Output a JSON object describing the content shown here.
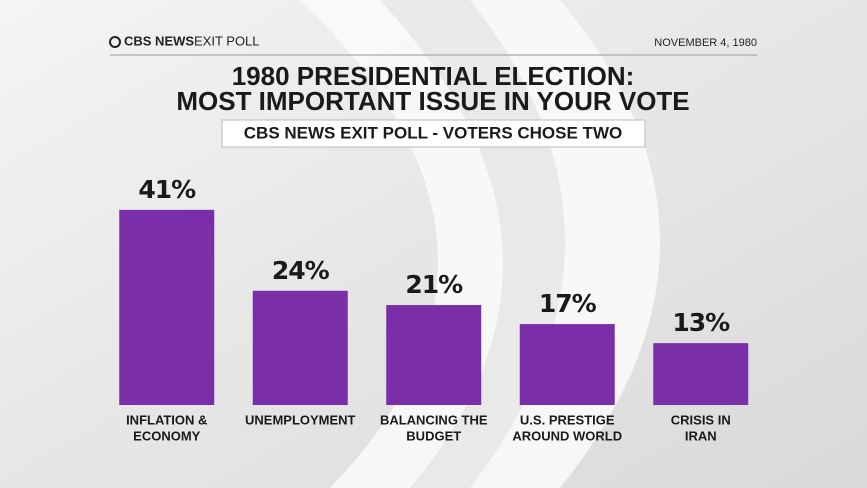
{
  "chart_data": {
    "type": "bar",
    "brand": "CBS NEWS",
    "brand_sub": "EXIT POLL",
    "date": "NOVEMBER 4, 1980",
    "title": [
      "1980 PRESIDENTIAL ELECTION:",
      "MOST IMPORTANT ISSUE IN YOUR VOTE"
    ],
    "subtitle": "CBS NEWS EXIT POLL - VOTERS CHOSE TWO",
    "categories": [
      [
        "INFLATION &",
        "ECONOMY"
      ],
      [
        "UNEMPLOYMENT"
      ],
      [
        "BALANCING THE",
        "BUDGET"
      ],
      [
        "U.S. PRESTIGE",
        "AROUND WORLD"
      ],
      [
        "CRISIS IN",
        "IRAN"
      ]
    ],
    "values": [
      41,
      24,
      21,
      17,
      13
    ],
    "value_labels": [
      "41%",
      "24%",
      "21%",
      "17%",
      "13%"
    ],
    "color": "#7a2ea8"
  }
}
